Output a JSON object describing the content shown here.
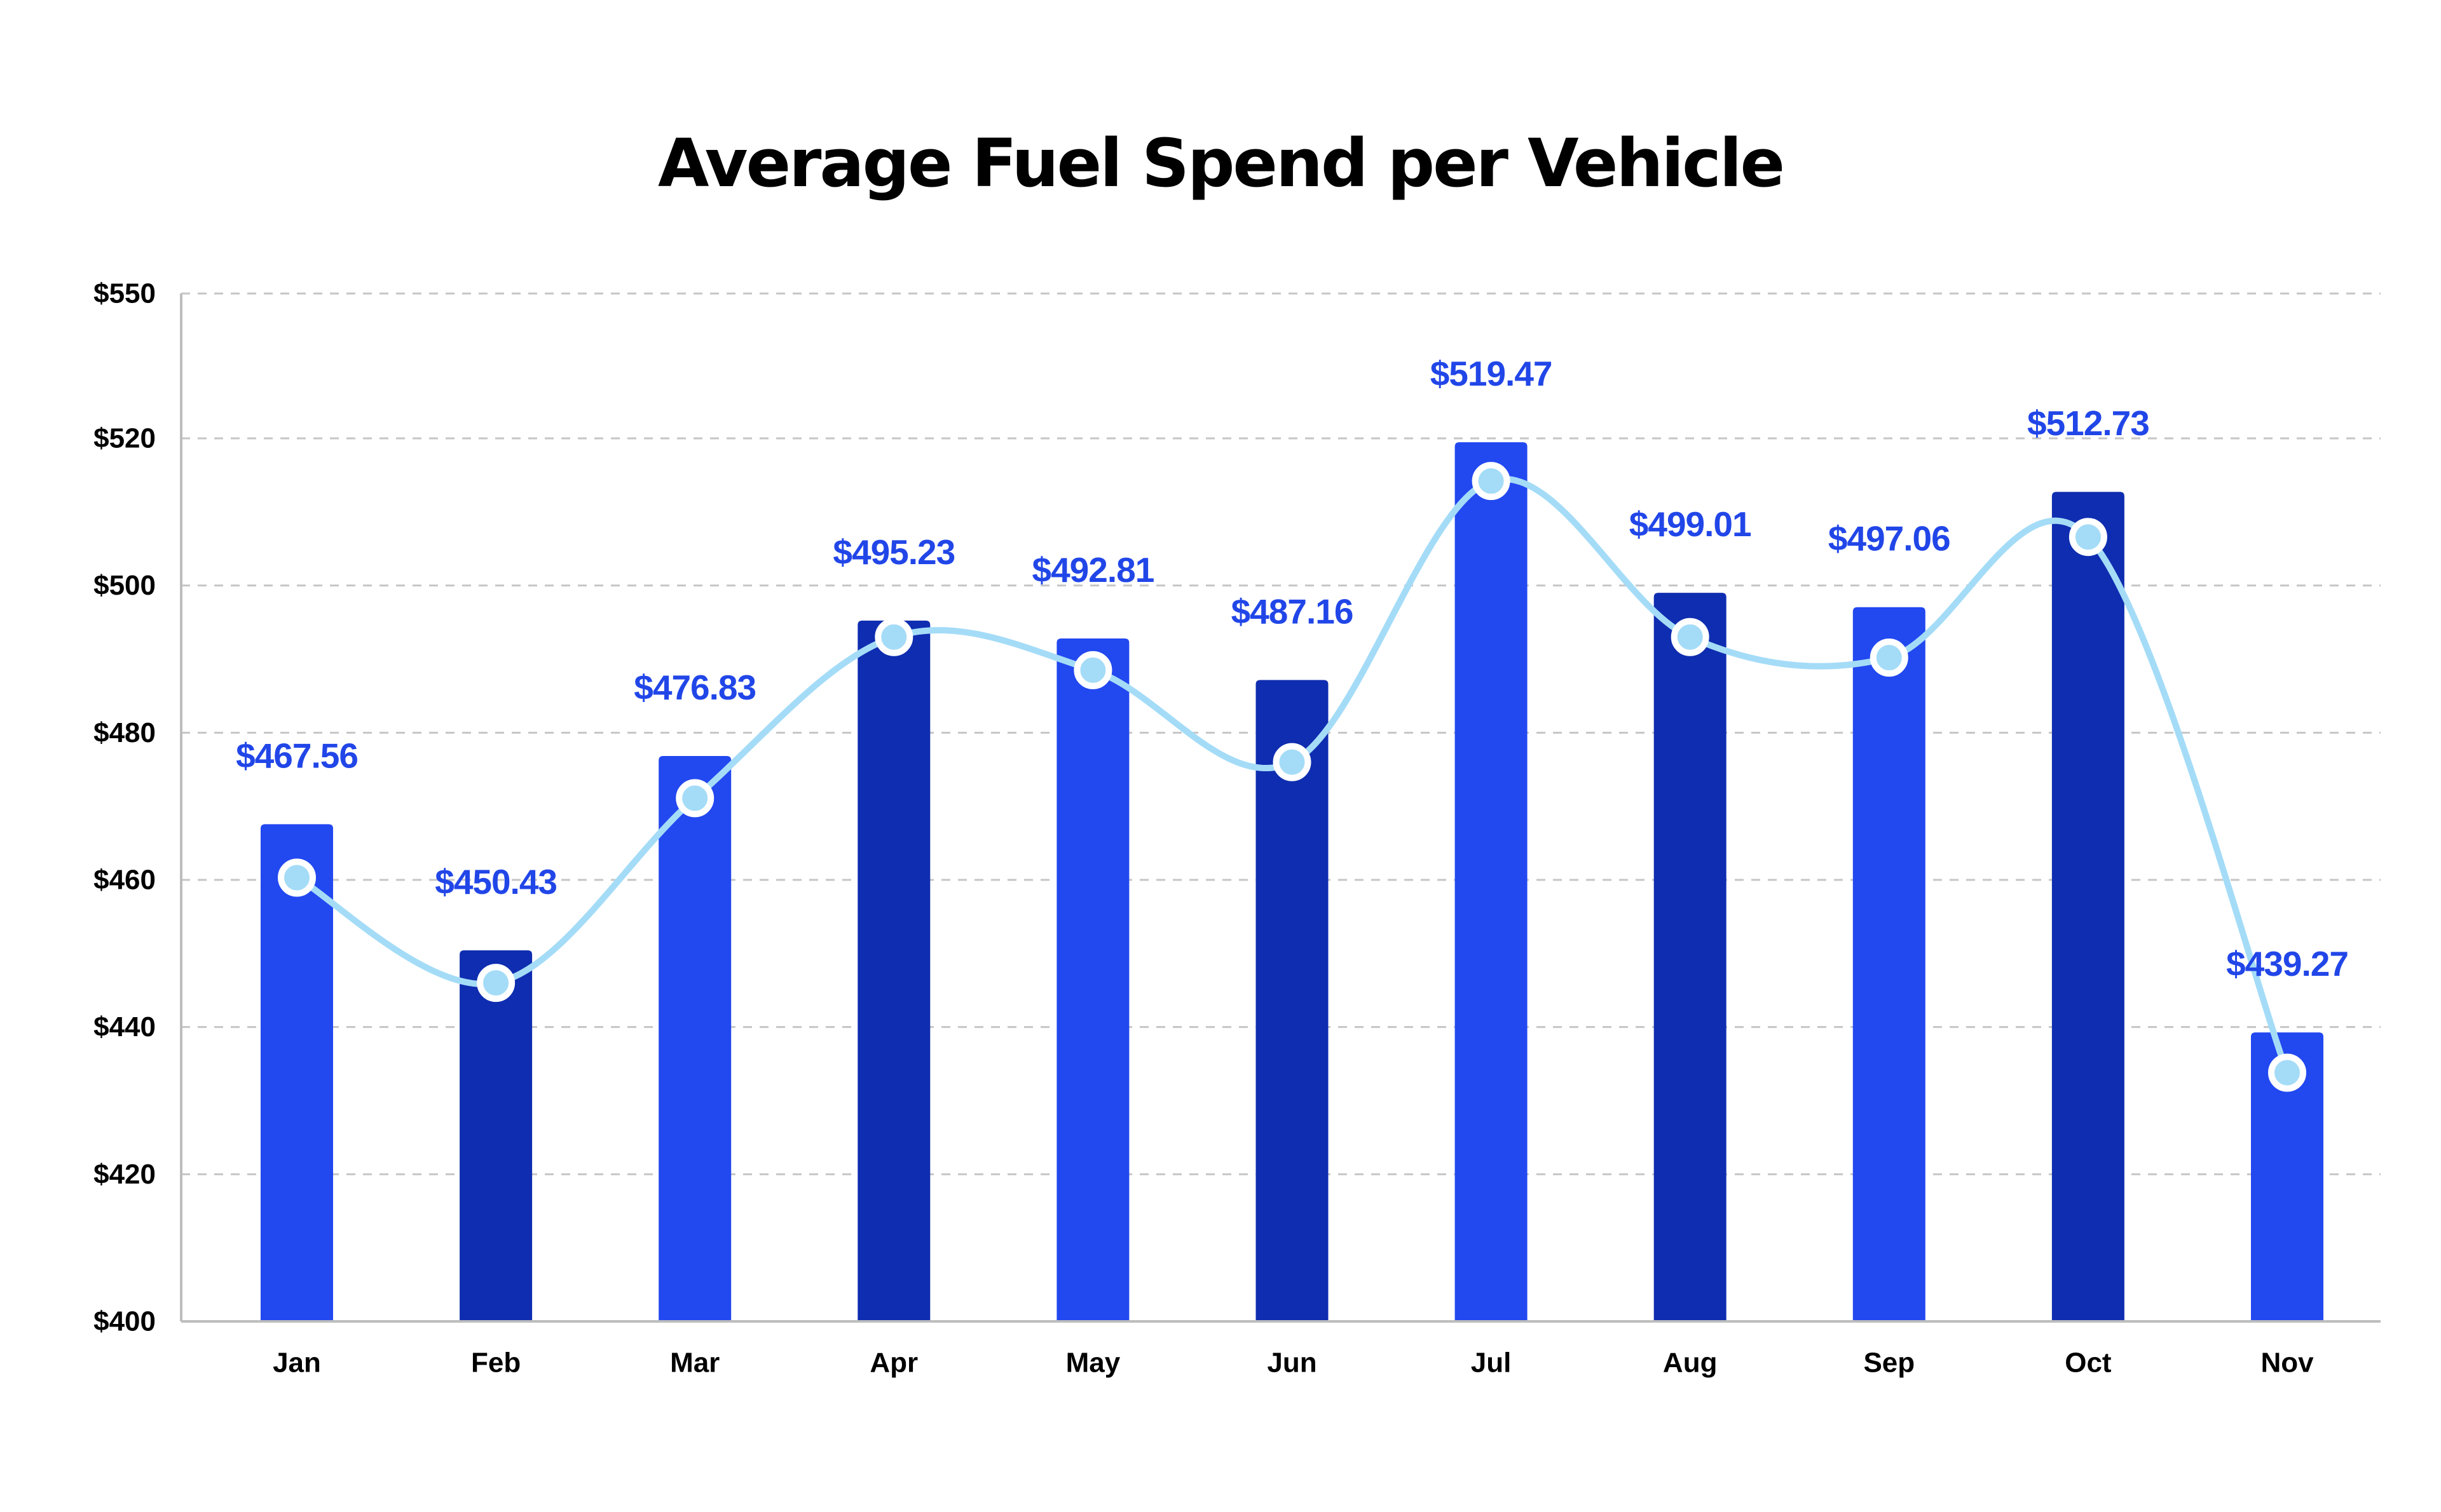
{
  "chart_data": {
    "type": "bar",
    "title": "Average Fuel Spend per Vehicle",
    "xlabel": "",
    "ylabel": "",
    "categories": [
      "Jan",
      "Feb",
      "Mar",
      "Apr",
      "May",
      "Jun",
      "Jul",
      "Aug",
      "Sep",
      "Oct",
      "Nov"
    ],
    "series": [
      {
        "type": "bar",
        "values": [
          467.56,
          450.43,
          476.83,
          495.23,
          492.81,
          487.16,
          519.47,
          499.01,
          497.06,
          512.73,
          439.27
        ],
        "labels": [
          "$467.56",
          "$450.43",
          "$476.83",
          "$495.23",
          "$492.81",
          "$487.16",
          "$519.47",
          "$499.01",
          "$497.06",
          "$512.73",
          "$439.27"
        ]
      },
      {
        "type": "line",
        "smooth": true,
        "values": [
          460.3,
          446.0,
          471.1,
          493.0,
          488.5,
          476.0,
          514.2,
          493.0,
          490.2,
          506.6,
          433.8
        ]
      }
    ],
    "ylim": [
      400,
      550
    ],
    "yticks": [
      400,
      420,
      440,
      460,
      480,
      500,
      520,
      550
    ],
    "ytick_labels": [
      "$400",
      "$420",
      "$440",
      "$460",
      "$480",
      "$500",
      "$520",
      "$550"
    ],
    "grid": true,
    "grid_style": "dashed",
    "legend": "none",
    "colors": {
      "bar_light": "#2248f0",
      "bar_dark": "#0f2db0",
      "line": "#a4dcf7",
      "marker_fill": "#a4dcf7",
      "marker_stroke": "#ffffff",
      "data_label": "#2146e8",
      "grid": "#c6c6c6",
      "axis": "#bdbdbd",
      "text": "#000000"
    }
  }
}
